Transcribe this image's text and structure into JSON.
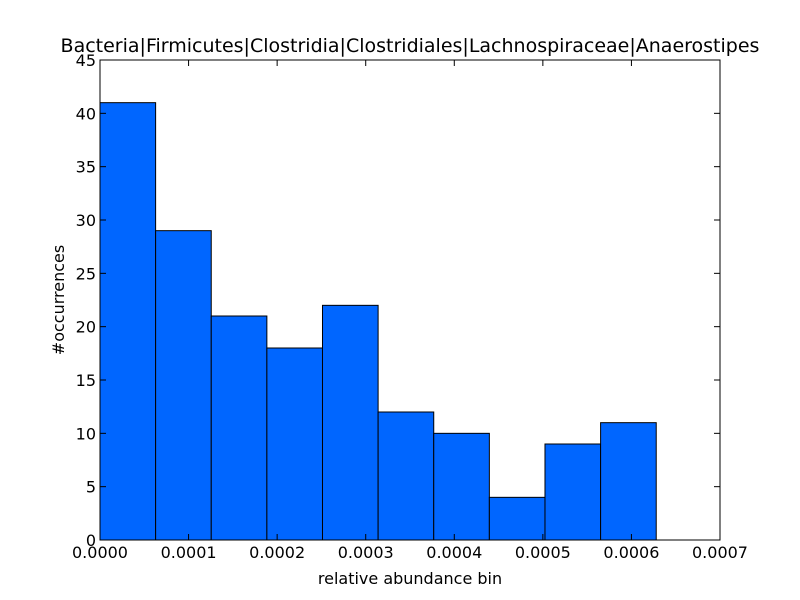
{
  "chart_data": {
    "type": "bar",
    "title": "Bacteria|Firmicutes|Clostridia|Clostridiales|Lachnospiraceae|Anaerostipes",
    "xlabel": "relative abundance bin",
    "ylabel": "#occurrences",
    "bin_edges": [
      0.0,
      6.28e-05,
      0.0001256,
      0.0001884,
      0.0002512,
      0.000314,
      0.0003768,
      0.0004396,
      0.0005024,
      0.0005652,
      0.000628
    ],
    "values": [
      41,
      29,
      21,
      18,
      22,
      12,
      10,
      4,
      9,
      11
    ],
    "xlim": [
      0,
      0.0007
    ],
    "ylim": [
      0,
      45
    ],
    "x_ticks": [
      "0.0000",
      "0.0001",
      "0.0002",
      "0.0003",
      "0.0004",
      "0.0005",
      "0.0006",
      "0.0007"
    ],
    "y_ticks": [
      "0",
      "5",
      "10",
      "15",
      "20",
      "25",
      "30",
      "35",
      "40",
      "45"
    ],
    "bar_color": "#0066ff",
    "edge_color": "#000000",
    "grid": false,
    "legend": false
  }
}
